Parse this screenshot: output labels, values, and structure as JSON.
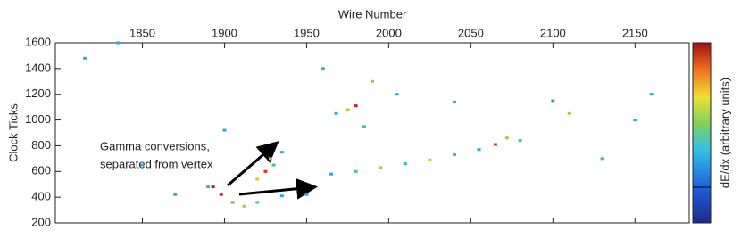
{
  "chart_data": {
    "type": "scatter",
    "xlabel": "Wire Number",
    "ylabel": "Clock Ticks",
    "colorbar_label": "dE/dx (arbitrary units)",
    "annotations": [
      "Gamma conversions,",
      "separated from vertex"
    ],
    "xlim": [
      1797,
      2183
    ],
    "xticks": [
      1850,
      1900,
      1950,
      2000,
      2050,
      2100,
      2150
    ],
    "ylim": [
      200,
      1600
    ],
    "yticks": [
      200,
      400,
      600,
      800,
      1000,
      1200,
      1400,
      1600
    ],
    "x": [
      1965,
      1980,
      1995,
      2010,
      2025,
      2040,
      2055,
      2065,
      2072,
      2080,
      1893,
      1898,
      1905,
      1912,
      1920,
      1935,
      1950,
      1920,
      1925,
      1930,
      1928,
      1935,
      1975,
      1980,
      1968,
      1990,
      1985,
      1815,
      1850,
      1890,
      2110,
      2150,
      2040,
      2100,
      2160,
      1835,
      1870,
      2130,
      1960,
      2005,
      1900
    ],
    "y": [
      580,
      600,
      630,
      660,
      690,
      730,
      770,
      810,
      860,
      840,
      480,
      420,
      360,
      330,
      360,
      410,
      420,
      540,
      600,
      650,
      700,
      750,
      1080,
      1110,
      1050,
      1300,
      950,
      1480,
      650,
      480,
      1050,
      1000,
      1140,
      1150,
      1200,
      1600,
      420,
      700,
      1400,
      1200,
      920
    ],
    "colors": [
      "#2ba8e0",
      "#40c0a0",
      "#9ad040",
      "#30b0e0",
      "#e0c030",
      "#40c0a0",
      "#2ba8e0",
      "#d03020",
      "#9ad040",
      "#40c0a0",
      "#b02020",
      "#d03020",
      "#e08030",
      "#9ad040",
      "#40c0a0",
      "#2ba8e0",
      "#2ba8e0",
      "#e0c030",
      "#d03020",
      "#40c0a0",
      "#9ad040",
      "#2ba8e0",
      "#9ad040",
      "#c02020",
      "#2ba8e0",
      "#9ad040",
      "#40c0a0",
      "#2ba8e0",
      "#2ba8e0",
      "#40c0a0",
      "#9ad040",
      "#2ba8e0",
      "#2ba8e0",
      "#2ba8e0",
      "#2ba8e0",
      "#2ba8e0",
      "#2ba8e0",
      "#40c0a0",
      "#2ba8e0",
      "#2ba8e0",
      "#2ba8e0"
    ]
  }
}
